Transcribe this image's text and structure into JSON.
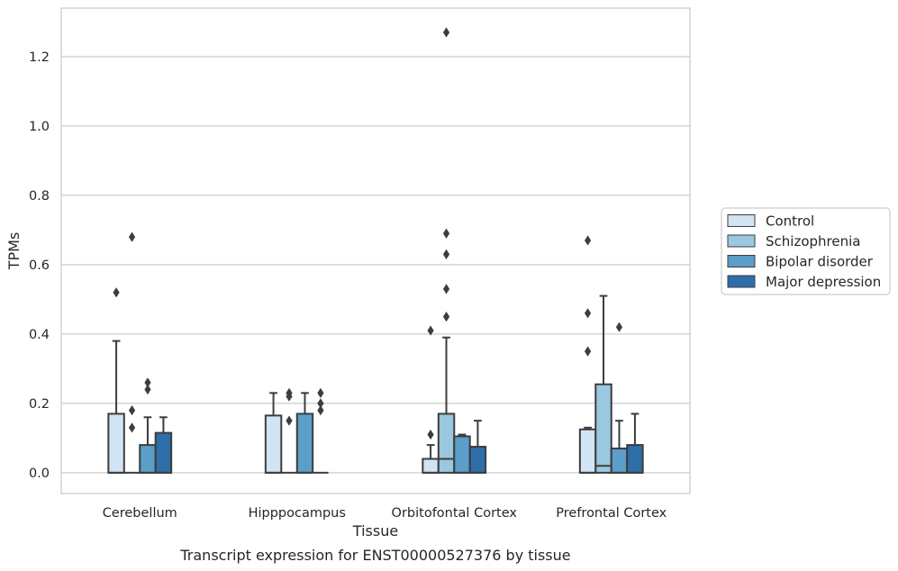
{
  "caption": "Transcript expression for ENST00000527376 by tissue",
  "colors": {
    "Control": "#d2e3f3",
    "Schizophrenia": "#9ac8e0",
    "Bipolar disorder": "#5b9ec9",
    "Major depression": "#2e6ea9",
    "line": "#3d3d3d",
    "grid": "#cccccc"
  },
  "chart_data": {
    "type": "box",
    "xlabel": "Tissue",
    "ylabel": "TPMs",
    "ylim": [
      -0.06,
      1.34
    ],
    "yticks": [
      "0.0",
      "0.2",
      "0.4",
      "0.6",
      "0.8",
      "1.0",
      "1.2"
    ],
    "categories": [
      "Cerebellum",
      "Hipppocampus",
      "Orbitofontal Cortex",
      "Prefrontal Cortex"
    ],
    "legend": {
      "placement": "right",
      "entries": [
        "Control",
        "Schizophrenia",
        "Bipolar disorder",
        "Major depression"
      ]
    },
    "grid": "horizontal",
    "series": [
      {
        "name": "Control",
        "boxes": [
          {
            "q1": 0.0,
            "median": 0.0,
            "q3": 0.17,
            "whisker_low": 0.0,
            "whisker_high": 0.38,
            "outliers": [
              0.52
            ]
          },
          {
            "q1": 0.0,
            "median": 0.0,
            "q3": 0.165,
            "whisker_low": 0.0,
            "whisker_high": 0.23,
            "outliers": []
          },
          {
            "q1": 0.0,
            "median": 0.0,
            "q3": 0.04,
            "whisker_low": 0.0,
            "whisker_high": 0.08,
            "outliers": [
              0.11,
              0.41
            ]
          },
          {
            "q1": 0.0,
            "median": 0.0,
            "q3": 0.125,
            "whisker_low": 0.0,
            "whisker_high": 0.13,
            "outliers": [
              0.35,
              0.46,
              0.67
            ]
          }
        ]
      },
      {
        "name": "Schizophrenia",
        "boxes": [
          {
            "q1": 0.0,
            "median": 0.0,
            "q3": 0.0,
            "whisker_low": 0.0,
            "whisker_high": 0.0,
            "outliers": [
              0.13,
              0.18,
              0.68
            ]
          },
          {
            "q1": 0.0,
            "median": 0.0,
            "q3": 0.0,
            "whisker_low": 0.0,
            "whisker_high": 0.0,
            "outliers": [
              0.15,
              0.22,
              0.23
            ]
          },
          {
            "q1": 0.0,
            "median": 0.04,
            "q3": 0.17,
            "whisker_low": 0.0,
            "whisker_high": 0.39,
            "outliers": [
              0.45,
              0.53,
              0.63,
              0.69,
              1.27
            ]
          },
          {
            "q1": 0.0,
            "median": 0.02,
            "q3": 0.255,
            "whisker_low": 0.0,
            "whisker_high": 0.51,
            "outliers": []
          }
        ]
      },
      {
        "name": "Bipolar disorder",
        "boxes": [
          {
            "q1": 0.0,
            "median": 0.0,
            "q3": 0.08,
            "whisker_low": 0.0,
            "whisker_high": 0.16,
            "outliers": [
              0.24,
              0.26
            ]
          },
          {
            "q1": 0.0,
            "median": 0.0,
            "q3": 0.17,
            "whisker_low": 0.0,
            "whisker_high": 0.23,
            "outliers": []
          },
          {
            "q1": 0.0,
            "median": 0.0,
            "q3": 0.105,
            "whisker_low": 0.0,
            "whisker_high": 0.11,
            "outliers": []
          },
          {
            "q1": 0.0,
            "median": 0.0,
            "q3": 0.07,
            "whisker_low": 0.0,
            "whisker_high": 0.15,
            "outliers": [
              0.42
            ]
          }
        ]
      },
      {
        "name": "Major depression",
        "boxes": [
          {
            "q1": 0.0,
            "median": 0.0,
            "q3": 0.115,
            "whisker_low": 0.0,
            "whisker_high": 0.16,
            "outliers": []
          },
          {
            "q1": 0.0,
            "median": 0.0,
            "q3": 0.0,
            "whisker_low": 0.0,
            "whisker_high": 0.0,
            "outliers": [
              0.18,
              0.2,
              0.23
            ]
          },
          {
            "q1": 0.0,
            "median": 0.0,
            "q3": 0.075,
            "whisker_low": 0.0,
            "whisker_high": 0.15,
            "outliers": []
          },
          {
            "q1": 0.0,
            "median": 0.0,
            "q3": 0.08,
            "whisker_low": 0.0,
            "whisker_high": 0.17,
            "outliers": []
          }
        ]
      }
    ]
  }
}
